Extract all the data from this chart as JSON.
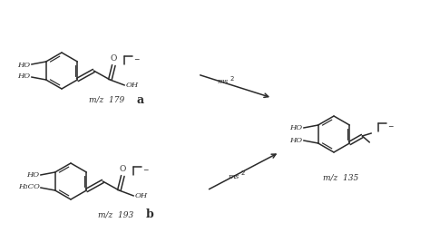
{
  "bg_color": "#ffffff",
  "line_color": "#2a2a2a",
  "text_color": "#2a2a2a",
  "figsize": [
    4.74,
    2.78
  ],
  "dpi": 100,
  "label_a": "a",
  "label_b": "b",
  "mz_caffeic": "m/z  179",
  "mz_ferulic": "m/z  193",
  "mz_product": "m/z  135",
  "hex_r": 20,
  "lw_main": 1.1,
  "lw_inner": 0.85
}
